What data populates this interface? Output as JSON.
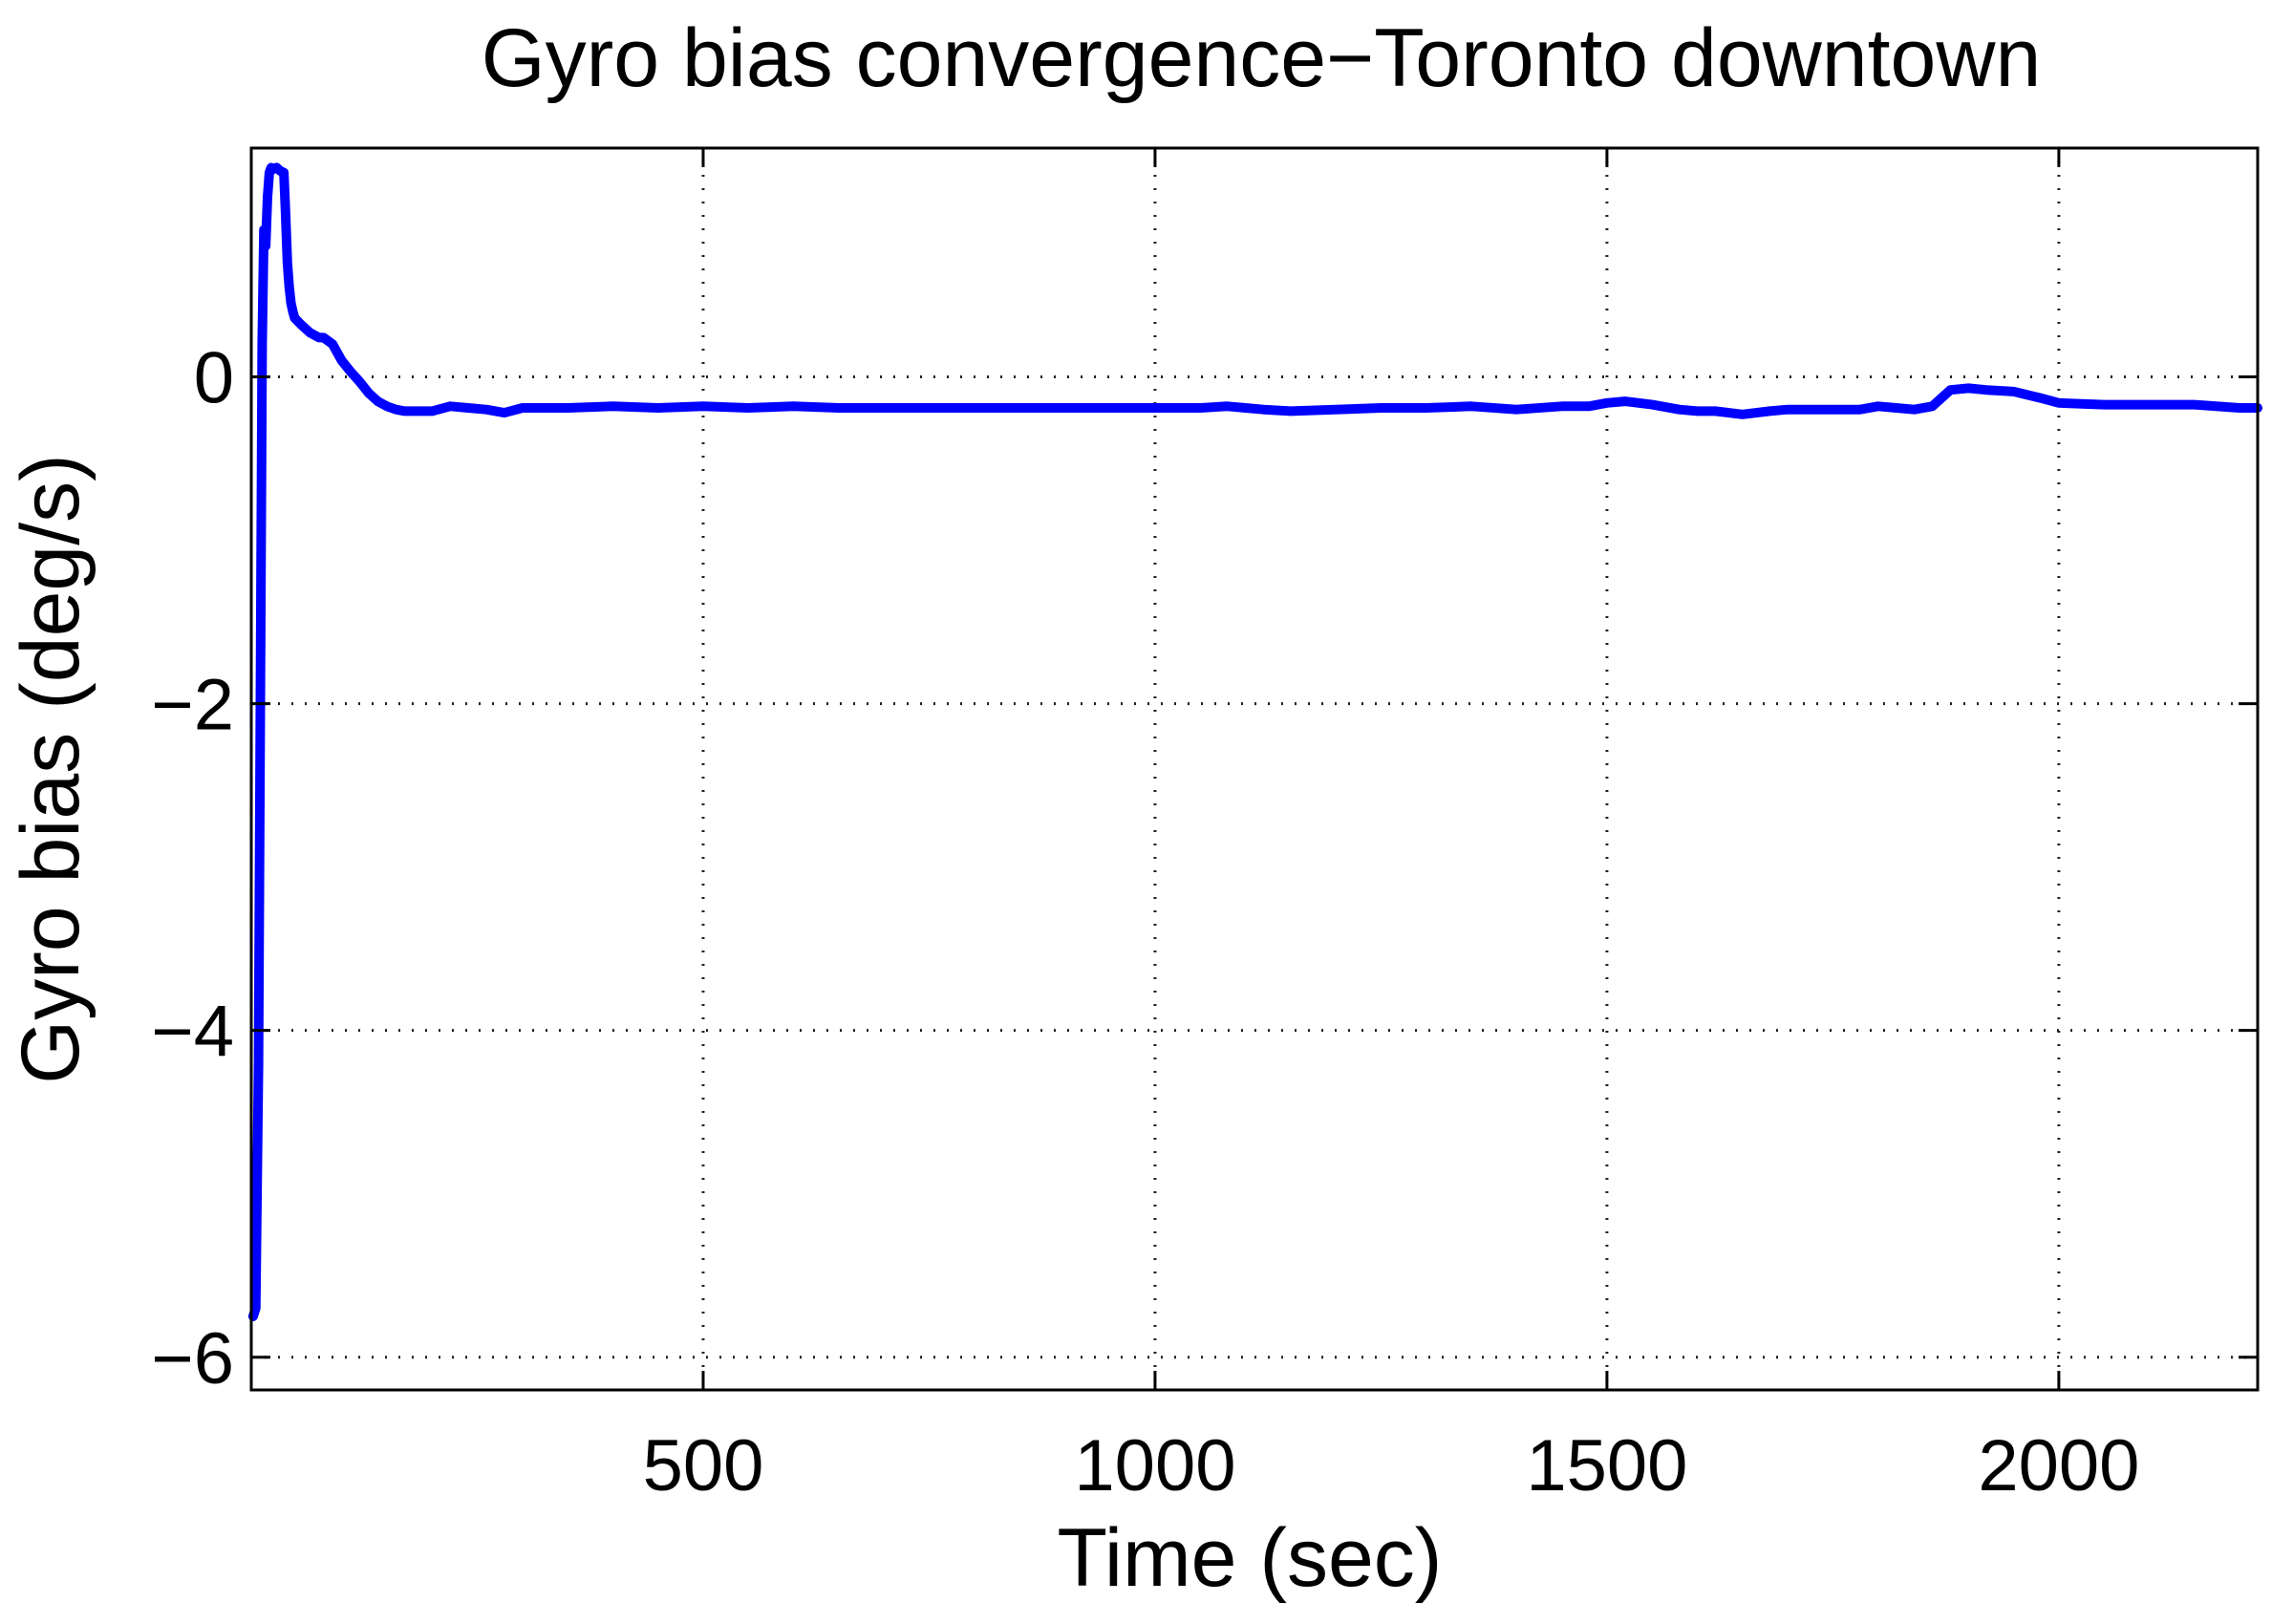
{
  "chart_data": {
    "type": "line",
    "title": "Gyro bias convergence−Toronto downtown",
    "xlabel": "Time (sec)",
    "ylabel": "Gyro bias (deg/s)",
    "xlim": [
      0,
      2220
    ],
    "ylim": [
      -6.2,
      1.4
    ],
    "xticks": [
      500,
      1000,
      1500,
      2000
    ],
    "xtick_labels": [
      "500",
      "1000",
      "1500",
      "2000"
    ],
    "yticks": [
      0,
      -2,
      -4,
      -6
    ],
    "ytick_labels": [
      "0",
      "−2",
      "−4",
      "−6"
    ],
    "grid": true,
    "legend": "none",
    "colors": {
      "series": "#0000ff",
      "frame": "#000000",
      "grid": "#222222",
      "background": "#ffffff"
    },
    "series": [
      {
        "color": "#0000ff",
        "x": [
          2,
          5,
          8,
          10,
          12,
          14,
          16,
          18,
          20,
          22,
          24,
          28,
          32,
          36,
          38,
          40,
          42,
          44,
          46,
          48,
          55,
          65,
          75,
          80,
          85,
          90,
          100,
          110,
          120,
          130,
          140,
          150,
          160,
          170,
          180,
          200,
          220,
          240,
          260,
          280,
          300,
          350,
          400,
          450,
          500,
          550,
          600,
          650,
          700,
          750,
          800,
          850,
          900,
          950,
          1000,
          1050,
          1080,
          1100,
          1120,
          1150,
          1200,
          1250,
          1300,
          1350,
          1400,
          1450,
          1480,
          1500,
          1520,
          1550,
          1580,
          1600,
          1620,
          1650,
          1680,
          1700,
          1750,
          1780,
          1800,
          1820,
          1840,
          1860,
          1880,
          1900,
          1920,
          1950,
          1980,
          2000,
          2050,
          2100,
          2150,
          2200,
          2220
        ],
        "y": [
          -5.75,
          -5.7,
          -4.2,
          -2.0,
          0.2,
          0.9,
          0.8,
          1.1,
          1.25,
          1.28,
          1.27,
          1.28,
          1.26,
          1.25,
          1.0,
          0.7,
          0.55,
          0.45,
          0.4,
          0.36,
          0.32,
          0.27,
          0.24,
          0.24,
          0.22,
          0.2,
          0.1,
          0.03,
          -0.03,
          -0.1,
          -0.15,
          -0.18,
          -0.2,
          -0.21,
          -0.21,
          -0.21,
          -0.18,
          -0.19,
          -0.2,
          -0.22,
          -0.19,
          -0.19,
          -0.18,
          -0.19,
          -0.18,
          -0.19,
          -0.18,
          -0.19,
          -0.19,
          -0.19,
          -0.19,
          -0.19,
          -0.19,
          -0.19,
          -0.19,
          -0.19,
          -0.18,
          -0.19,
          -0.2,
          -0.21,
          -0.2,
          -0.19,
          -0.19,
          -0.18,
          -0.2,
          -0.18,
          -0.18,
          -0.16,
          -0.15,
          -0.17,
          -0.2,
          -0.21,
          -0.21,
          -0.23,
          -0.21,
          -0.2,
          -0.2,
          -0.2,
          -0.18,
          -0.19,
          -0.2,
          -0.18,
          -0.08,
          -0.07,
          -0.08,
          -0.09,
          -0.13,
          -0.16,
          -0.17,
          -0.17,
          -0.17,
          -0.19,
          -0.19
        ]
      }
    ]
  }
}
